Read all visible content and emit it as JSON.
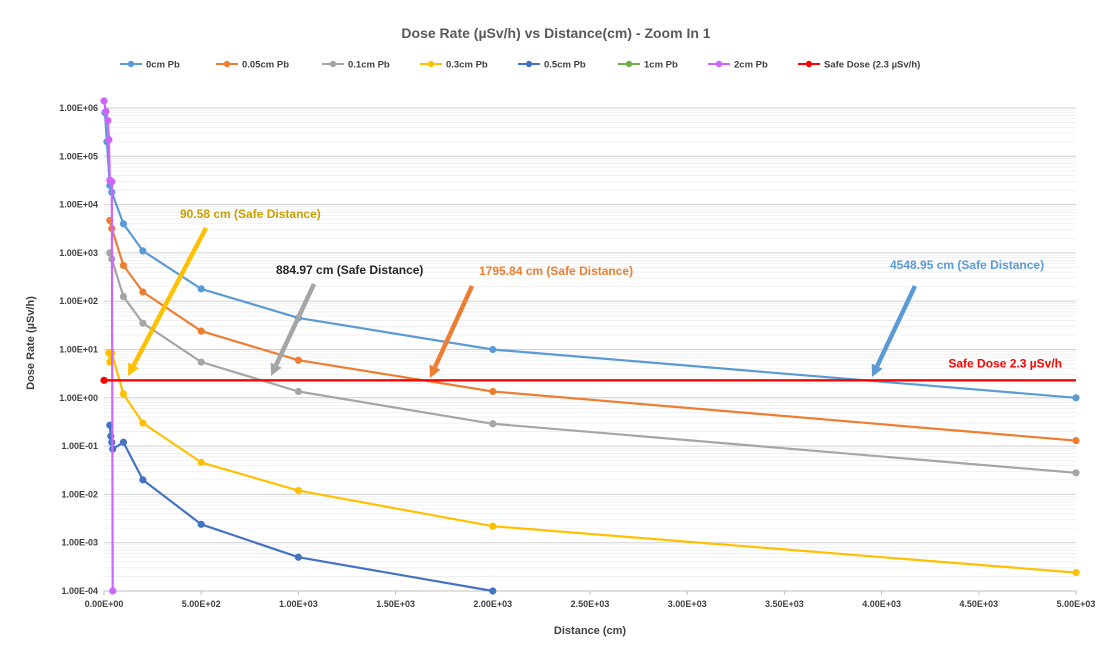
{
  "chart_data": {
    "type": "line",
    "title": "Dose Rate (µSv/h) vs Distance(cm) - Zoom In 1",
    "xlabel": "Distance (cm)",
    "ylabel": "Dose Rate (µSv/h)",
    "xlim": [
      0,
      5000
    ],
    "ylim": [
      0.0001,
      1000000
    ],
    "yscale": "log",
    "grid": true,
    "legend_position": "top",
    "x_ticks": [
      "0.00E+00",
      "5.00E+02",
      "1.00E+03",
      "1.50E+03",
      "2.00E+03",
      "2.50E+03",
      "3.00E+03",
      "3.50E+03",
      "4.00E+03",
      "4.50E+03",
      "5.00E+03"
    ],
    "y_ticks": [
      "1.00E-04",
      "1.00E-03",
      "1.00E-02",
      "1.00E-01",
      "1.00E+00",
      "1.00E+01",
      "1.00E+02",
      "1.00E+03",
      "1.00E+04",
      "1.00E+05",
      "1.00E+06"
    ],
    "series": [
      {
        "name": "0cm Pb",
        "color": "#5B9BD5",
        "points": [
          [
            5,
            800000
          ],
          [
            15,
            200000
          ],
          [
            30,
            25000
          ],
          [
            40,
            18000
          ],
          [
            100,
            4000
          ],
          [
            200,
            1100
          ],
          [
            500,
            180
          ],
          [
            1000,
            45
          ],
          [
            2000,
            10
          ],
          [
            5000,
            1.0
          ]
        ]
      },
      {
        "name": "0.05cm Pb",
        "color": "#ED7D31",
        "points": [
          [
            30,
            4700
          ],
          [
            40,
            3200
          ],
          [
            100,
            550
          ],
          [
            200,
            155
          ],
          [
            500,
            24
          ],
          [
            1000,
            6
          ],
          [
            2000,
            1.35
          ],
          [
            5000,
            0.13
          ]
        ]
      },
      {
        "name": "0.1cm Pb",
        "color": "#A5A5A5",
        "points": [
          [
            30,
            1000
          ],
          [
            40,
            750
          ],
          [
            100,
            125
          ],
          [
            200,
            35
          ],
          [
            500,
            5.5
          ],
          [
            1000,
            1.35
          ],
          [
            2000,
            0.29
          ],
          [
            5000,
            0.028
          ]
        ]
      },
      {
        "name": "0.3cm Pb",
        "color": "#FFC000",
        "points": [
          [
            25,
            8.5
          ],
          [
            30,
            5.5
          ],
          [
            40,
            8.5
          ],
          [
            100,
            1.2
          ],
          [
            200,
            0.3
          ],
          [
            500,
            0.046
          ],
          [
            1000,
            0.012
          ],
          [
            2000,
            0.0022
          ],
          [
            5000,
            0.00024
          ]
        ]
      },
      {
        "name": "0.5cm Pb",
        "color": "#4472C4",
        "points": [
          [
            30,
            0.27
          ],
          [
            35,
            0.16
          ],
          [
            40,
            0.12
          ],
          [
            45,
            0.087
          ],
          [
            100,
            0.12
          ],
          [
            200,
            0.02
          ],
          [
            500,
            0.0024
          ],
          [
            1000,
            0.0005
          ],
          [
            2000,
            0.0001
          ]
        ]
      },
      {
        "name": "1cm Pb",
        "color": "#70AD47",
        "points": []
      },
      {
        "name": "2cm Pb",
        "color": "#CC66FF",
        "points": [
          [
            0,
            1400000
          ],
          [
            10,
            850000
          ],
          [
            20,
            550000
          ],
          [
            25,
            220000
          ],
          [
            30,
            32000
          ],
          [
            40,
            30000
          ],
          [
            45,
            0.0001
          ]
        ]
      },
      {
        "name": "Safe Dose (2.3 µSv/h)",
        "color": "#FF0000",
        "points": [
          [
            0,
            2.3
          ],
          [
            5000,
            2.3
          ]
        ]
      }
    ],
    "annotations": [
      {
        "text": "90.58  cm (Safe Distance)",
        "color": "#C9A000",
        "at": 90.58
      },
      {
        "text": "884.97  cm (Safe Distance)",
        "color": "#262626",
        "at": 884.97
      },
      {
        "text": "1795.84  cm (Safe Distance)",
        "color": "#ED7D31",
        "at": 1795.84
      },
      {
        "text": "4548.95 cm (Safe Distance)",
        "color": "#5B9BD5",
        "at": 4548.95
      },
      {
        "text": "Safe Dose 2.3 µSv/h",
        "color": "#FF0000"
      }
    ]
  }
}
